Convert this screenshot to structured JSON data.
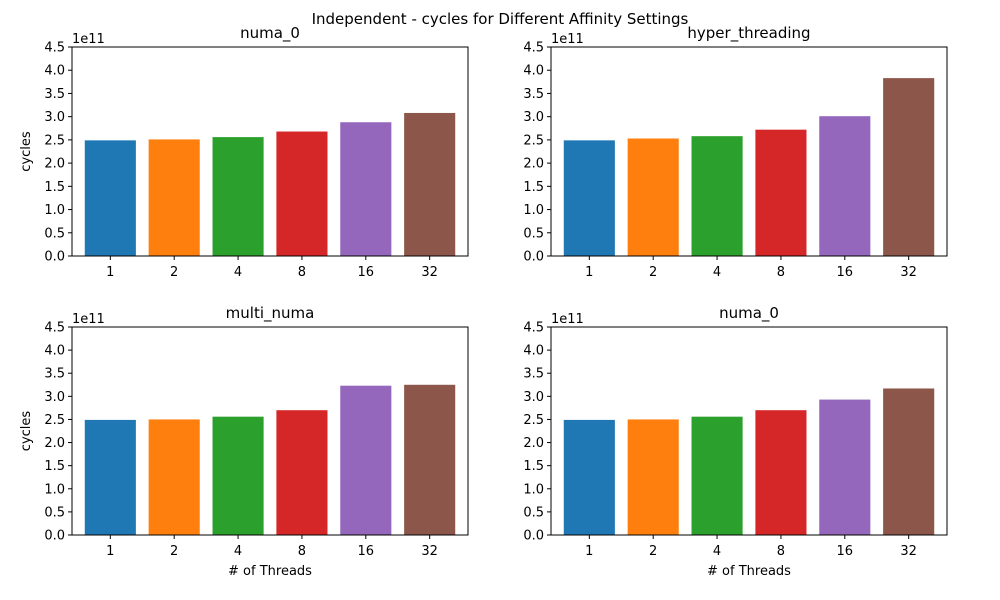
{
  "figure": {
    "suptitle": "Independent - cycles for Different Affinity Settings"
  },
  "style": {
    "bar_colors": [
      "#1f77b4",
      "#ff7f0e",
      "#2ca02c",
      "#d62728",
      "#9467bd",
      "#8c564b"
    ],
    "axes_color": "#000000",
    "background": "#ffffff"
  },
  "chart_data": [
    {
      "type": "bar",
      "title": "numa_0",
      "xlabel": "",
      "ylabel": "cycles",
      "offset_text": "1e11",
      "categories": [
        "1",
        "2",
        "4",
        "8",
        "16",
        "32"
      ],
      "values": [
        249000000000.0,
        251000000000.0,
        256000000000.0,
        268000000000.0,
        288000000000.0,
        308000000000.0
      ],
      "ylim": [
        0,
        450000000000.0
      ],
      "yticks": [
        "0.0",
        "0.5",
        "1.0",
        "1.5",
        "2.0",
        "2.5",
        "3.0",
        "3.5",
        "4.0",
        "4.5"
      ],
      "grid": false,
      "legend": "none"
    },
    {
      "type": "bar",
      "title": "hyper_threading",
      "xlabel": "",
      "ylabel": "",
      "offset_text": "1e11",
      "categories": [
        "1",
        "2",
        "4",
        "8",
        "16",
        "32"
      ],
      "values": [
        249000000000.0,
        253000000000.0,
        258000000000.0,
        272000000000.0,
        301000000000.0,
        383000000000.0
      ],
      "ylim": [
        0,
        450000000000.0
      ],
      "yticks": [
        "0.0",
        "0.5",
        "1.0",
        "1.5",
        "2.0",
        "2.5",
        "3.0",
        "3.5",
        "4.0",
        "4.5"
      ],
      "grid": false,
      "legend": "none"
    },
    {
      "type": "bar",
      "title": "multi_numa",
      "xlabel": "# of Threads",
      "ylabel": "cycles",
      "offset_text": "1e11",
      "categories": [
        "1",
        "2",
        "4",
        "8",
        "16",
        "32"
      ],
      "values": [
        249000000000.0,
        250000000000.0,
        256000000000.0,
        270000000000.0,
        323000000000.0,
        325000000000.0
      ],
      "ylim": [
        0,
        450000000000.0
      ],
      "yticks": [
        "0.0",
        "0.5",
        "1.0",
        "1.5",
        "2.0",
        "2.5",
        "3.0",
        "3.5",
        "4.0",
        "4.5"
      ],
      "grid": false,
      "legend": "none"
    },
    {
      "type": "bar",
      "title": "numa_0",
      "xlabel": "# of Threads",
      "ylabel": "",
      "offset_text": "1e11",
      "categories": [
        "1",
        "2",
        "4",
        "8",
        "16",
        "32"
      ],
      "values": [
        249000000000.0,
        250000000000.0,
        256000000000.0,
        270000000000.0,
        293000000000.0,
        317000000000.0
      ],
      "ylim": [
        0,
        450000000000.0
      ],
      "yticks": [
        "0.0",
        "0.5",
        "1.0",
        "1.5",
        "2.0",
        "2.5",
        "3.0",
        "3.5",
        "4.0",
        "4.5"
      ],
      "grid": false,
      "legend": "none"
    }
  ]
}
